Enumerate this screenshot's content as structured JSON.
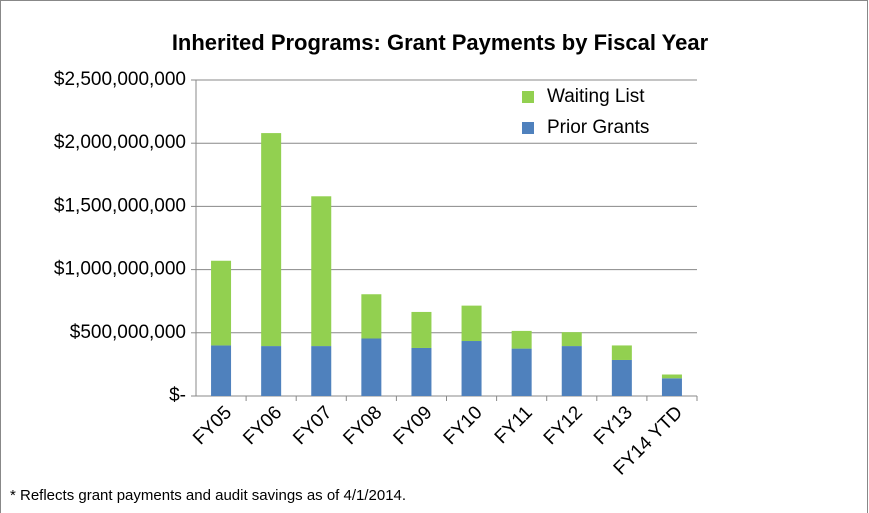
{
  "chart_data": {
    "type": "stacked_bar",
    "title": "Inherited Programs: Grant Payments by Fiscal Year",
    "categories": [
      "FY05",
      "FY06",
      "FY07",
      "FY08",
      "FY09",
      "FY10",
      "FY11",
      "FY12",
      "FY13",
      "FY14 YTD"
    ],
    "series": [
      {
        "name": "Prior Grants",
        "color": "#4f81bd",
        "values": [
          400000000,
          395000000,
          395000000,
          455000000,
          380000000,
          435000000,
          375000000,
          395000000,
          285000000,
          140000000
        ]
      },
      {
        "name": "Waiting List",
        "color": "#92d050",
        "values": [
          670000000,
          1685000000,
          1185000000,
          350000000,
          285000000,
          280000000,
          140000000,
          110000000,
          115000000,
          30000000
        ]
      }
    ],
    "ylim": [
      0,
      2500000000
    ],
    "yticks": [
      {
        "value": 0,
        "label": "$-"
      },
      {
        "value": 500000000,
        "label": "$500,000,000"
      },
      {
        "value": 1000000000,
        "label": "$1,000,000,000"
      },
      {
        "value": 1500000000,
        "label": "$1,500,000,000"
      },
      {
        "value": 2000000000,
        "label": "$2,000,000,000"
      },
      {
        "value": 2500000000,
        "label": "$2,500,000,000"
      }
    ],
    "grid": true,
    "legend": "top-right",
    "note": "* Reflects grant payments and audit savings as of 4/1/2014."
  }
}
